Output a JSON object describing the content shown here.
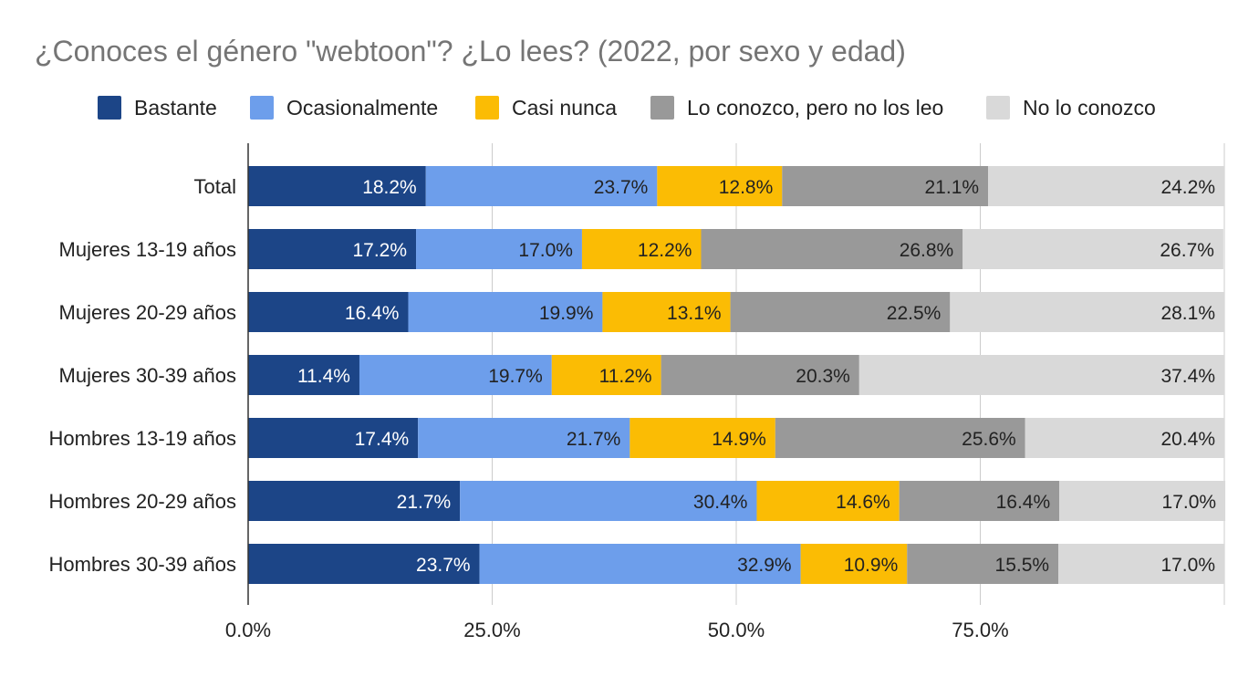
{
  "chart_data": {
    "type": "bar",
    "orientation": "horizontal",
    "stacked": true,
    "title": "¿Conoces el género \"webtoon\"? ¿Lo lees? (2022, por sexo y edad)",
    "legend_position": "top",
    "grid": true,
    "xlim": [
      0,
      100
    ],
    "x_ticks": [
      "0.0%",
      "25.0%",
      "50.0%",
      "75.0%"
    ],
    "categories": [
      "Total",
      "Mujeres 13-19 años",
      "Mujeres 20-29 años",
      "Mujeres 30-39 años",
      "Hombres 13-19 años",
      "Hombres 20-29 años",
      "Hombres 30-39 años"
    ],
    "series": [
      {
        "name": "Bastante",
        "color": "#1c4587",
        "label_color": "#ffffff",
        "values": [
          18.2,
          17.2,
          16.4,
          11.4,
          17.4,
          21.7,
          23.7
        ]
      },
      {
        "name": "Ocasionalmente",
        "color": "#6d9eeb",
        "label_color": "#222222",
        "values": [
          23.7,
          17.0,
          19.9,
          19.7,
          21.7,
          30.4,
          32.9
        ]
      },
      {
        "name": "Casi nunca",
        "color": "#fbbc04",
        "label_color": "#222222",
        "values": [
          12.8,
          12.2,
          13.1,
          11.2,
          14.9,
          14.6,
          10.9
        ]
      },
      {
        "name": "Lo conozco, pero no los leo",
        "color": "#999999",
        "label_color": "#222222",
        "values": [
          21.1,
          26.8,
          22.5,
          20.3,
          25.6,
          16.4,
          15.5
        ]
      },
      {
        "name": "No lo conozco",
        "color": "#d9d9d9",
        "label_color": "#222222",
        "values": [
          24.2,
          26.7,
          28.1,
          37.4,
          20.4,
          17.0,
          17.0
        ]
      }
    ]
  }
}
